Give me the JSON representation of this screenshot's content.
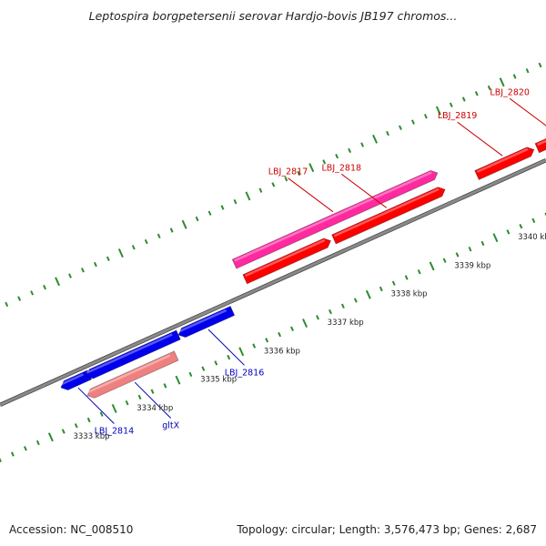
{
  "title": "Leptospira borgpetersenii serovar Hardjo-bovis JB197 chromos...",
  "accession_text": "Accession: NC_008510",
  "summary_text": "Topology: circular; Length: 3,576,473 bp; Genes: 2,687",
  "colors": {
    "backbone": "#8a8a8a",
    "tick_marks": "#2e8b2e",
    "forward_gene": "#ff0000",
    "forward_label": "#cc0000",
    "forward_highlight": "#ff2aa0",
    "reverse_gene": "#0000ee",
    "reverse_label": "#0000bb",
    "reverse_highlight": "#f08080"
  },
  "scale_labels": [
    "3333 kbp",
    "3334 kbp",
    "3335 kbp",
    "3336 kbp",
    "3337 kbp",
    "3338 kbp",
    "3339 kbp",
    "3340 kbp"
  ],
  "genes": [
    {
      "name": "LBJ_2814",
      "strand": "reverse",
      "color": "#0000ee",
      "start_kbp": 3332.9,
      "end_kbp": 3333.35
    },
    {
      "name": "gltX",
      "strand": "reverse",
      "color": "#f08080",
      "start_kbp": 3333.2,
      "end_kbp": 3334.6
    },
    {
      "name": "",
      "strand": "reverse",
      "color": "#0000ee",
      "start_kbp": 3333.3,
      "end_kbp": 3334.75
    },
    {
      "name": "LBJ_2816",
      "strand": "reverse",
      "color": "#0000ee",
      "start_kbp": 3334.75,
      "end_kbp": 3335.6
    },
    {
      "name": "LBJ_2817",
      "strand": "forward",
      "color": "#ff2aa0",
      "start_kbp": 3335.9,
      "end_kbp": 3339.1
    },
    {
      "name": "",
      "strand": "forward",
      "color": "#ff0000",
      "start_kbp": 3335.95,
      "end_kbp": 3337.3
    },
    {
      "name": "LBJ_2818",
      "strand": "forward",
      "color": "#ff0000",
      "start_kbp": 3337.35,
      "end_kbp": 3339.1
    },
    {
      "name": "LBJ_2819",
      "strand": "forward",
      "color": "#ff0000",
      "start_kbp": 3339.6,
      "end_kbp": 3340.5
    },
    {
      "name": "LBJ_2820",
      "strand": "forward",
      "color": "#ff0000",
      "start_kbp": 3340.55,
      "end_kbp": 3341.2
    },
    {
      "name": "",
      "strand": "forward",
      "color": "#ff0000",
      "start_kbp": 3341.3,
      "end_kbp": 3341.7
    }
  ]
}
